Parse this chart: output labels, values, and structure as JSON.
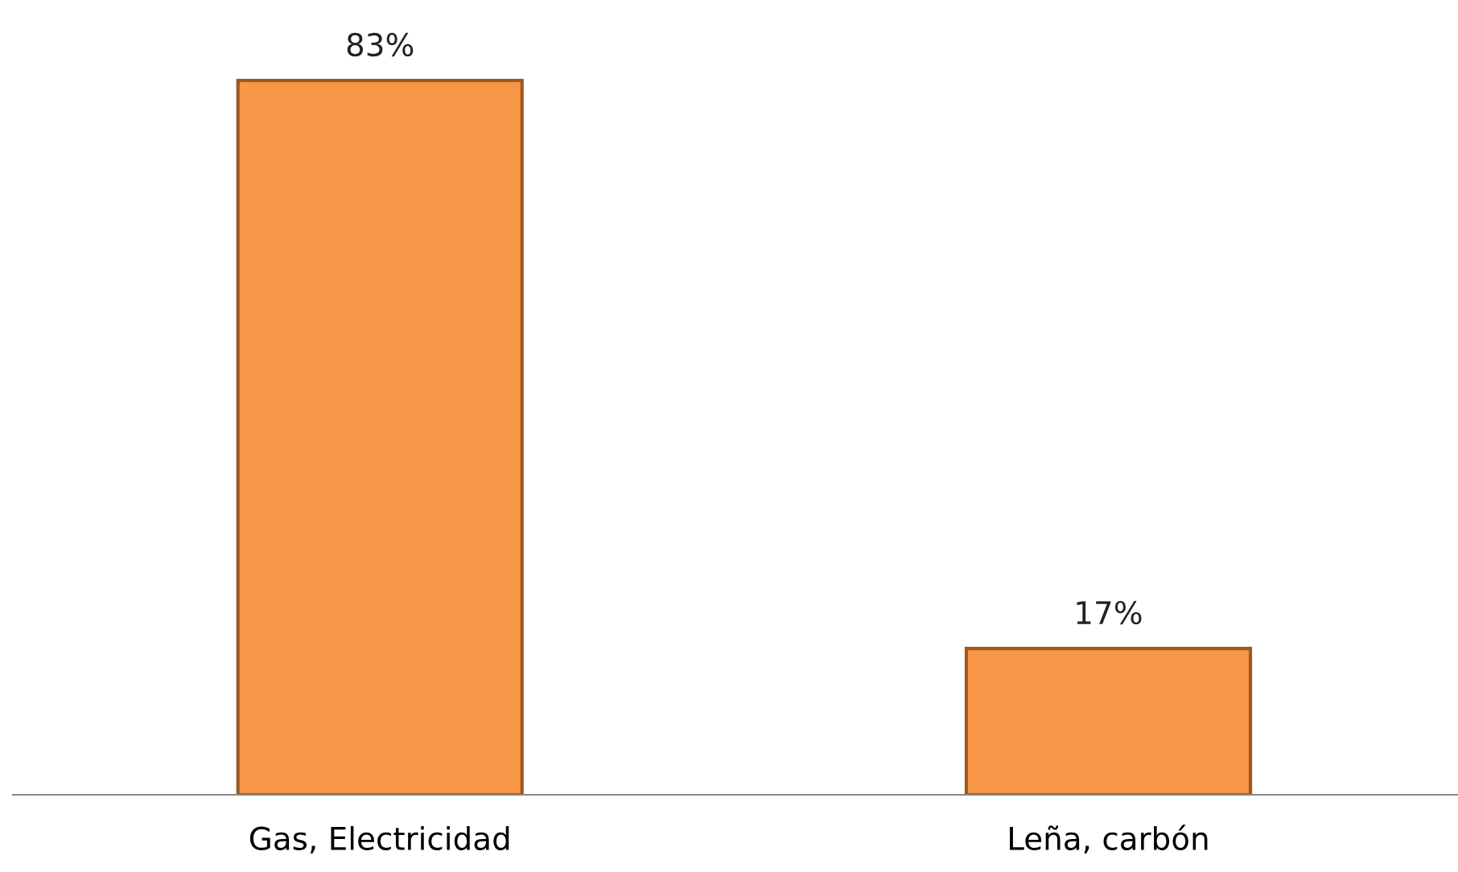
{
  "chart_data": {
    "type": "bar",
    "categories": [
      "Gas, Electricidad",
      "Leña, carbón"
    ],
    "values": [
      83,
      17
    ],
    "value_labels": [
      "83%",
      "17%"
    ],
    "color": "#f79646",
    "grid": false,
    "legend": false
  }
}
